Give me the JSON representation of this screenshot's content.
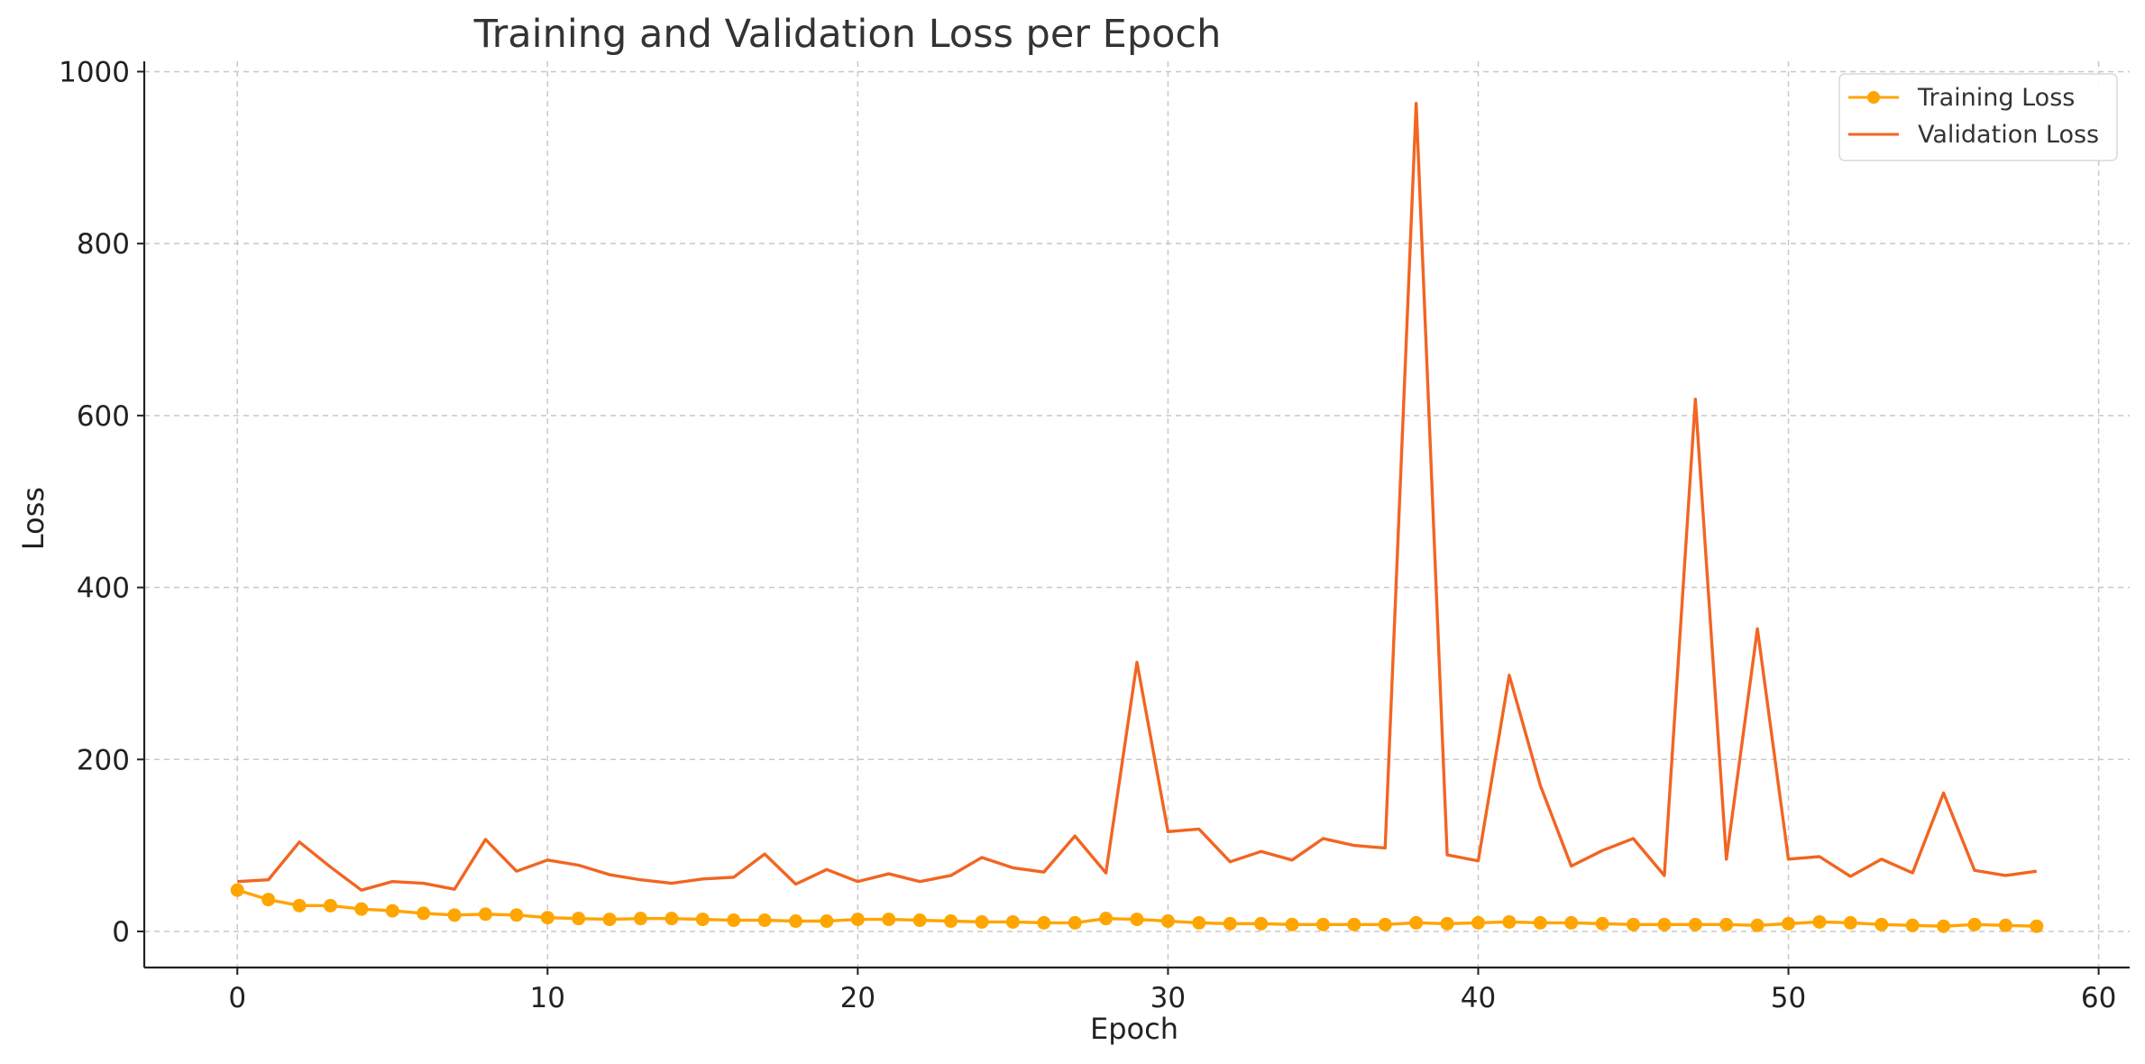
{
  "chart_data": {
    "type": "line",
    "title": "Training and Validation Loss per Epoch",
    "xlabel": "Epoch",
    "ylabel": "Loss",
    "xlim": [
      -3,
      61
    ],
    "ylim": [
      -42,
      1012
    ],
    "xticks": [
      0,
      10,
      20,
      30,
      40,
      50,
      60
    ],
    "yticks": [
      0,
      200,
      400,
      600,
      800,
      1000
    ],
    "grid": true,
    "legend_position": "top-right",
    "x": [
      0,
      1,
      2,
      3,
      4,
      5,
      6,
      7,
      8,
      9,
      10,
      11,
      12,
      13,
      14,
      15,
      16,
      17,
      18,
      19,
      20,
      21,
      22,
      23,
      24,
      25,
      26,
      27,
      28,
      29,
      30,
      31,
      32,
      33,
      34,
      35,
      36,
      37,
      38,
      39,
      40,
      41,
      42,
      43,
      44,
      45,
      46,
      47,
      48,
      49,
      50,
      51,
      52,
      53,
      54,
      55,
      56,
      57,
      58
    ],
    "series": [
      {
        "name": "Training Loss",
        "color": "#FFA500",
        "marker": "circle",
        "values": [
          48,
          37,
          30,
          30,
          26,
          24,
          21,
          19,
          20,
          19,
          16,
          15,
          14,
          15,
          15,
          14,
          13,
          13,
          12,
          12,
          14,
          14,
          13,
          12,
          11,
          11,
          10,
          10,
          15,
          14,
          12,
          10,
          9,
          9,
          8,
          8,
          8,
          8,
          10,
          9,
          10,
          11,
          10,
          10,
          9,
          8,
          8,
          8,
          8,
          7,
          9,
          11,
          10,
          8,
          7,
          6,
          8,
          7,
          6
        ]
      },
      {
        "name": "Validation Loss",
        "color": "#F26522",
        "marker": "none",
        "values": [
          58,
          60,
          104,
          75,
          48,
          58,
          56,
          49,
          107,
          70,
          83,
          77,
          66,
          60,
          56,
          61,
          63,
          90,
          55,
          72,
          58,
          67,
          58,
          65,
          86,
          74,
          69,
          111,
          68,
          313,
          116,
          119,
          81,
          93,
          83,
          108,
          100,
          97,
          963,
          89,
          82,
          298,
          170,
          76,
          94,
          108,
          65,
          619,
          84,
          352,
          84,
          87,
          64,
          84,
          68,
          161,
          71,
          65,
          70
        ]
      }
    ]
  }
}
